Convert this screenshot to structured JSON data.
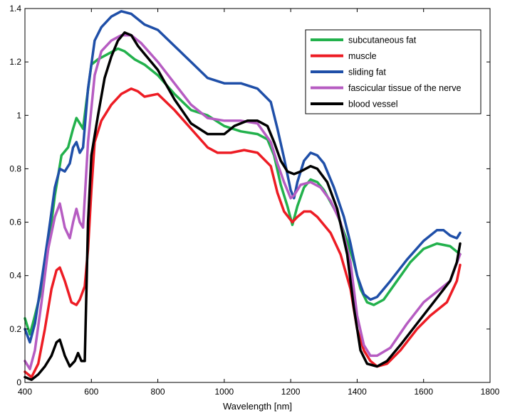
{
  "chart_data": {
    "type": "line",
    "xlabel": "Wavelength [nm]",
    "ylabel": "",
    "xlim": [
      400,
      1800
    ],
    "ylim": [
      0,
      1.4
    ],
    "xticks": [
      400,
      600,
      800,
      1000,
      1200,
      1400,
      1600,
      1800
    ],
    "yticks": [
      0,
      0.2,
      0.4,
      0.6,
      0.8,
      1,
      1.2,
      1.4
    ],
    "xtick_labels": [
      "400",
      "600",
      "800",
      "1000",
      "1200",
      "1400",
      "1600",
      "1800"
    ],
    "ytick_labels": [
      "0",
      "0.2",
      "0.4",
      "0.6",
      "0.8",
      "1",
      "1.2",
      "1.4"
    ],
    "grid": false,
    "legend_position": "top-right",
    "series": [
      {
        "name": "subcutaneous fat",
        "color": "#22b14c",
        "points": [
          [
            400,
            0.24
          ],
          [
            415,
            0.18
          ],
          [
            430,
            0.25
          ],
          [
            450,
            0.35
          ],
          [
            470,
            0.5
          ],
          [
            490,
            0.7
          ],
          [
            510,
            0.85
          ],
          [
            530,
            0.88
          ],
          [
            545,
            0.95
          ],
          [
            555,
            0.99
          ],
          [
            565,
            0.97
          ],
          [
            575,
            0.95
          ],
          [
            585,
            1.05
          ],
          [
            600,
            1.19
          ],
          [
            620,
            1.21
          ],
          [
            650,
            1.23
          ],
          [
            680,
            1.25
          ],
          [
            700,
            1.24
          ],
          [
            730,
            1.21
          ],
          [
            760,
            1.19
          ],
          [
            800,
            1.15
          ],
          [
            850,
            1.08
          ],
          [
            900,
            1.02
          ],
          [
            950,
            1.0
          ],
          [
            1000,
            0.96
          ],
          [
            1050,
            0.94
          ],
          [
            1100,
            0.93
          ],
          [
            1130,
            0.91
          ],
          [
            1150,
            0.85
          ],
          [
            1170,
            0.74
          ],
          [
            1190,
            0.66
          ],
          [
            1205,
            0.59
          ],
          [
            1220,
            0.66
          ],
          [
            1240,
            0.73
          ],
          [
            1260,
            0.76
          ],
          [
            1280,
            0.75
          ],
          [
            1300,
            0.72
          ],
          [
            1340,
            0.63
          ],
          [
            1370,
            0.53
          ],
          [
            1390,
            0.45
          ],
          [
            1410,
            0.35
          ],
          [
            1430,
            0.3
          ],
          [
            1450,
            0.29
          ],
          [
            1480,
            0.31
          ],
          [
            1520,
            0.38
          ],
          [
            1560,
            0.45
          ],
          [
            1600,
            0.5
          ],
          [
            1640,
            0.52
          ],
          [
            1680,
            0.51
          ],
          [
            1710,
            0.48
          ]
        ]
      },
      {
        "name": "muscle",
        "color": "#ed1c24",
        "points": [
          [
            400,
            0.04
          ],
          [
            420,
            0.02
          ],
          [
            440,
            0.07
          ],
          [
            460,
            0.2
          ],
          [
            480,
            0.35
          ],
          [
            495,
            0.42
          ],
          [
            505,
            0.43
          ],
          [
            520,
            0.38
          ],
          [
            540,
            0.3
          ],
          [
            555,
            0.29
          ],
          [
            565,
            0.31
          ],
          [
            580,
            0.36
          ],
          [
            590,
            0.5
          ],
          [
            600,
            0.72
          ],
          [
            610,
            0.9
          ],
          [
            630,
            0.98
          ],
          [
            660,
            1.04
          ],
          [
            690,
            1.08
          ],
          [
            720,
            1.1
          ],
          [
            740,
            1.09
          ],
          [
            760,
            1.07
          ],
          [
            800,
            1.08
          ],
          [
            850,
            1.02
          ],
          [
            900,
            0.95
          ],
          [
            950,
            0.88
          ],
          [
            980,
            0.86
          ],
          [
            1020,
            0.86
          ],
          [
            1060,
            0.87
          ],
          [
            1100,
            0.86
          ],
          [
            1140,
            0.81
          ],
          [
            1160,
            0.71
          ],
          [
            1180,
            0.64
          ],
          [
            1205,
            0.6
          ],
          [
            1220,
            0.62
          ],
          [
            1240,
            0.64
          ],
          [
            1260,
            0.64
          ],
          [
            1280,
            0.62
          ],
          [
            1320,
            0.56
          ],
          [
            1350,
            0.48
          ],
          [
            1380,
            0.35
          ],
          [
            1400,
            0.2
          ],
          [
            1420,
            0.12
          ],
          [
            1440,
            0.08
          ],
          [
            1460,
            0.06
          ],
          [
            1490,
            0.07
          ],
          [
            1530,
            0.12
          ],
          [
            1580,
            0.2
          ],
          [
            1620,
            0.25
          ],
          [
            1670,
            0.3
          ],
          [
            1700,
            0.38
          ],
          [
            1710,
            0.44
          ]
        ]
      },
      {
        "name": "sliding fat",
        "color": "#1f4fa8",
        "points": [
          [
            400,
            0.2
          ],
          [
            415,
            0.15
          ],
          [
            430,
            0.22
          ],
          [
            450,
            0.38
          ],
          [
            470,
            0.55
          ],
          [
            490,
            0.73
          ],
          [
            505,
            0.8
          ],
          [
            520,
            0.79
          ],
          [
            535,
            0.82
          ],
          [
            545,
            0.88
          ],
          [
            555,
            0.9
          ],
          [
            565,
            0.86
          ],
          [
            575,
            0.88
          ],
          [
            590,
            1.1
          ],
          [
            610,
            1.28
          ],
          [
            630,
            1.33
          ],
          [
            660,
            1.37
          ],
          [
            690,
            1.39
          ],
          [
            720,
            1.38
          ],
          [
            760,
            1.34
          ],
          [
            800,
            1.32
          ],
          [
            850,
            1.26
          ],
          [
            900,
            1.2
          ],
          [
            950,
            1.14
          ],
          [
            1000,
            1.12
          ],
          [
            1050,
            1.12
          ],
          [
            1100,
            1.1
          ],
          [
            1140,
            1.05
          ],
          [
            1160,
            0.95
          ],
          [
            1180,
            0.84
          ],
          [
            1200,
            0.72
          ],
          [
            1210,
            0.69
          ],
          [
            1220,
            0.75
          ],
          [
            1240,
            0.83
          ],
          [
            1260,
            0.86
          ],
          [
            1280,
            0.85
          ],
          [
            1300,
            0.82
          ],
          [
            1330,
            0.73
          ],
          [
            1360,
            0.62
          ],
          [
            1380,
            0.52
          ],
          [
            1400,
            0.4
          ],
          [
            1420,
            0.33
          ],
          [
            1440,
            0.31
          ],
          [
            1460,
            0.32
          ],
          [
            1500,
            0.38
          ],
          [
            1550,
            0.46
          ],
          [
            1600,
            0.53
          ],
          [
            1640,
            0.57
          ],
          [
            1660,
            0.57
          ],
          [
            1680,
            0.55
          ],
          [
            1700,
            0.54
          ],
          [
            1710,
            0.56
          ]
        ]
      },
      {
        "name": "fascicular tissue of the nerve",
        "color": "#b65cc2",
        "points": [
          [
            400,
            0.08
          ],
          [
            415,
            0.05
          ],
          [
            430,
            0.12
          ],
          [
            450,
            0.3
          ],
          [
            470,
            0.5
          ],
          [
            490,
            0.62
          ],
          [
            505,
            0.67
          ],
          [
            520,
            0.58
          ],
          [
            535,
            0.54
          ],
          [
            545,
            0.6
          ],
          [
            555,
            0.65
          ],
          [
            565,
            0.6
          ],
          [
            575,
            0.58
          ],
          [
            590,
            0.9
          ],
          [
            610,
            1.15
          ],
          [
            630,
            1.24
          ],
          [
            660,
            1.28
          ],
          [
            690,
            1.3
          ],
          [
            720,
            1.3
          ],
          [
            750,
            1.27
          ],
          [
            800,
            1.2
          ],
          [
            850,
            1.12
          ],
          [
            900,
            1.04
          ],
          [
            950,
            0.99
          ],
          [
            1000,
            0.98
          ],
          [
            1050,
            0.98
          ],
          [
            1100,
            0.97
          ],
          [
            1140,
            0.9
          ],
          [
            1160,
            0.82
          ],
          [
            1180,
            0.75
          ],
          [
            1200,
            0.69
          ],
          [
            1210,
            0.7
          ],
          [
            1230,
            0.74
          ],
          [
            1260,
            0.75
          ],
          [
            1290,
            0.73
          ],
          [
            1320,
            0.68
          ],
          [
            1350,
            0.6
          ],
          [
            1380,
            0.45
          ],
          [
            1400,
            0.25
          ],
          [
            1420,
            0.14
          ],
          [
            1440,
            0.1
          ],
          [
            1460,
            0.1
          ],
          [
            1500,
            0.13
          ],
          [
            1550,
            0.22
          ],
          [
            1600,
            0.3
          ],
          [
            1640,
            0.34
          ],
          [
            1680,
            0.38
          ],
          [
            1710,
            0.48
          ]
        ]
      },
      {
        "name": "blood vessel",
        "color": "#000000",
        "points": [
          [
            400,
            0.02
          ],
          [
            420,
            0.01
          ],
          [
            440,
            0.03
          ],
          [
            460,
            0.06
          ],
          [
            480,
            0.1
          ],
          [
            495,
            0.15
          ],
          [
            505,
            0.16
          ],
          [
            520,
            0.1
          ],
          [
            535,
            0.06
          ],
          [
            550,
            0.08
          ],
          [
            560,
            0.11
          ],
          [
            570,
            0.08
          ],
          [
            580,
            0.08
          ],
          [
            590,
            0.6
          ],
          [
            600,
            0.85
          ],
          [
            620,
            1.0
          ],
          [
            640,
            1.14
          ],
          [
            660,
            1.22
          ],
          [
            680,
            1.28
          ],
          [
            700,
            1.31
          ],
          [
            720,
            1.3
          ],
          [
            740,
            1.26
          ],
          [
            760,
            1.23
          ],
          [
            800,
            1.17
          ],
          [
            850,
            1.06
          ],
          [
            900,
            0.97
          ],
          [
            950,
            0.93
          ],
          [
            1000,
            0.93
          ],
          [
            1030,
            0.96
          ],
          [
            1070,
            0.98
          ],
          [
            1100,
            0.98
          ],
          [
            1130,
            0.96
          ],
          [
            1150,
            0.9
          ],
          [
            1170,
            0.83
          ],
          [
            1190,
            0.79
          ],
          [
            1210,
            0.78
          ],
          [
            1230,
            0.79
          ],
          [
            1260,
            0.81
          ],
          [
            1280,
            0.8
          ],
          [
            1310,
            0.75
          ],
          [
            1340,
            0.65
          ],
          [
            1370,
            0.48
          ],
          [
            1390,
            0.28
          ],
          [
            1410,
            0.12
          ],
          [
            1430,
            0.07
          ],
          [
            1460,
            0.06
          ],
          [
            1490,
            0.08
          ],
          [
            1530,
            0.14
          ],
          [
            1580,
            0.22
          ],
          [
            1630,
            0.3
          ],
          [
            1680,
            0.38
          ],
          [
            1700,
            0.45
          ],
          [
            1710,
            0.52
          ]
        ]
      }
    ]
  }
}
